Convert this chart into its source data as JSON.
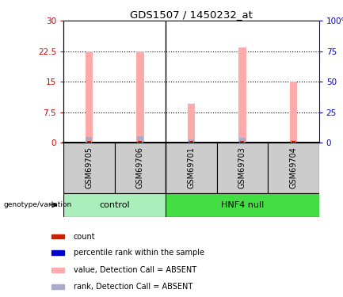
{
  "title": "GDS1507 / 1450232_at",
  "samples": [
    "GSM69705",
    "GSM69706",
    "GSM69701",
    "GSM69703",
    "GSM69704"
  ],
  "group_labels": [
    "control",
    "HNF4 null"
  ],
  "bar_values": [
    22.5,
    22.5,
    9.5,
    23.5,
    15.0
  ],
  "rank_values": [
    1.3,
    1.5,
    0.7,
    1.1,
    0.6
  ],
  "count_values": [
    0.4,
    0.4,
    0.4,
    0.4,
    0.4
  ],
  "ylim_left": [
    0,
    30
  ],
  "ylim_right": [
    0,
    100
  ],
  "yticks_left": [
    0,
    7.5,
    15,
    22.5,
    30
  ],
  "yticks_right": [
    0,
    25,
    50,
    75,
    100
  ],
  "ytick_labels_left": [
    "0",
    "7.5",
    "15",
    "22.5",
    "30"
  ],
  "ytick_labels_right": [
    "0",
    "25",
    "50",
    "75",
    "100%"
  ],
  "left_color": "#cc0000",
  "right_color": "#0000cc",
  "bar_color": "#ffaaaa",
  "rank_bar_color": "#aaaacc",
  "count_bar_color": "#cc2200",
  "group_bg_control": "#aaeebb",
  "group_bg_hnf4": "#44dd44",
  "sample_bg": "#cccccc",
  "legend_items": [
    {
      "color": "#cc2200",
      "label": "count"
    },
    {
      "color": "#0000cc",
      "label": "percentile rank within the sample"
    },
    {
      "color": "#ffaaaa",
      "label": "value, Detection Call = ABSENT"
    },
    {
      "color": "#aaaacc",
      "label": "rank, Detection Call = ABSENT"
    }
  ],
  "genotype_label": "genotype/variation",
  "bar_width": 0.15,
  "rank_bar_width": 0.12,
  "count_bar_width": 0.08
}
